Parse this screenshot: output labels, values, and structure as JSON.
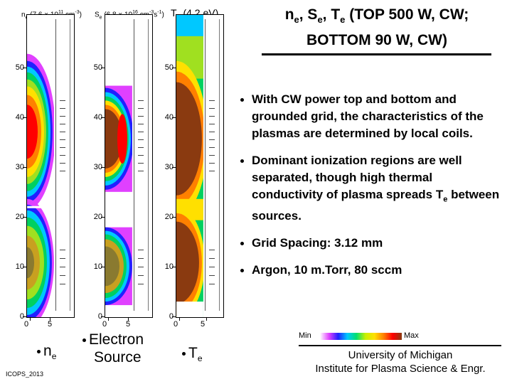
{
  "title": {
    "line1_a": "n",
    "line1_sub1": "e",
    "line1_b": ", S",
    "line1_sub2": "e",
    "line1_c": ", T",
    "line1_sub3": "e",
    "line1_d": " (TOP 500 W, CW;",
    "line2": "BOTTOM 90 W, CW)"
  },
  "bullets": [
    "With CW power top and bottom and grounded grid, the characteristics of the plasmas are determined by local coils.",
    "Dominant ionization regions are well separated, though high thermal conductivity of plasma spreads T",
    "Grid Spacing: 3.12 mm",
    "Argon, 10 m.Torr, 80 sccm"
  ],
  "bullet2_sub": "e",
  "bullet2_tail": " between sources.",
  "panels": {
    "ne": {
      "hdr_a": "n",
      "hdr_sub": "e",
      "hdr_b": " (7.6 × 10",
      "hdr_sup": "11",
      "hdr_c": " cm",
      "hdr_sup2": "-3",
      "hdr_d": ")",
      "label_a": "n",
      "label_sub": "e"
    },
    "se": {
      "hdr_a": "S",
      "hdr_sub": "e",
      "hdr_b": " (6.8 × 10",
      "hdr_sup": "16",
      "hdr_c": " cm",
      "hdr_sup2": "-3",
      "hdr_d": "s",
      "hdr_sup3": "-1",
      "hdr_e": ")",
      "label_line1": "Electron",
      "label_line2": "Source"
    },
    "te": {
      "hdr_a": "T",
      "hdr_sub": "e",
      "hdr_b": " (4.2 eV)",
      "label_a": "T",
      "label_sub": "e"
    }
  },
  "y_ticks": [
    "50",
    "40",
    "30",
    "20",
    "10",
    "0"
  ],
  "x_ticks": [
    "0",
    "5"
  ],
  "colorbar": {
    "min": "Min",
    "max": "Max"
  },
  "affiliation": {
    "line1": "University of Michigan",
    "line2": "Institute for Plasma Science & Engr."
  },
  "footer": "ICOPS_2013",
  "colors": {
    "hot": "#ff0000",
    "brown": "#8a3a10",
    "yellow": "#ffe000",
    "green": "#00d060",
    "cyan": "#00c8ff",
    "blue": "#2020ff",
    "magenta": "#e040ff"
  }
}
